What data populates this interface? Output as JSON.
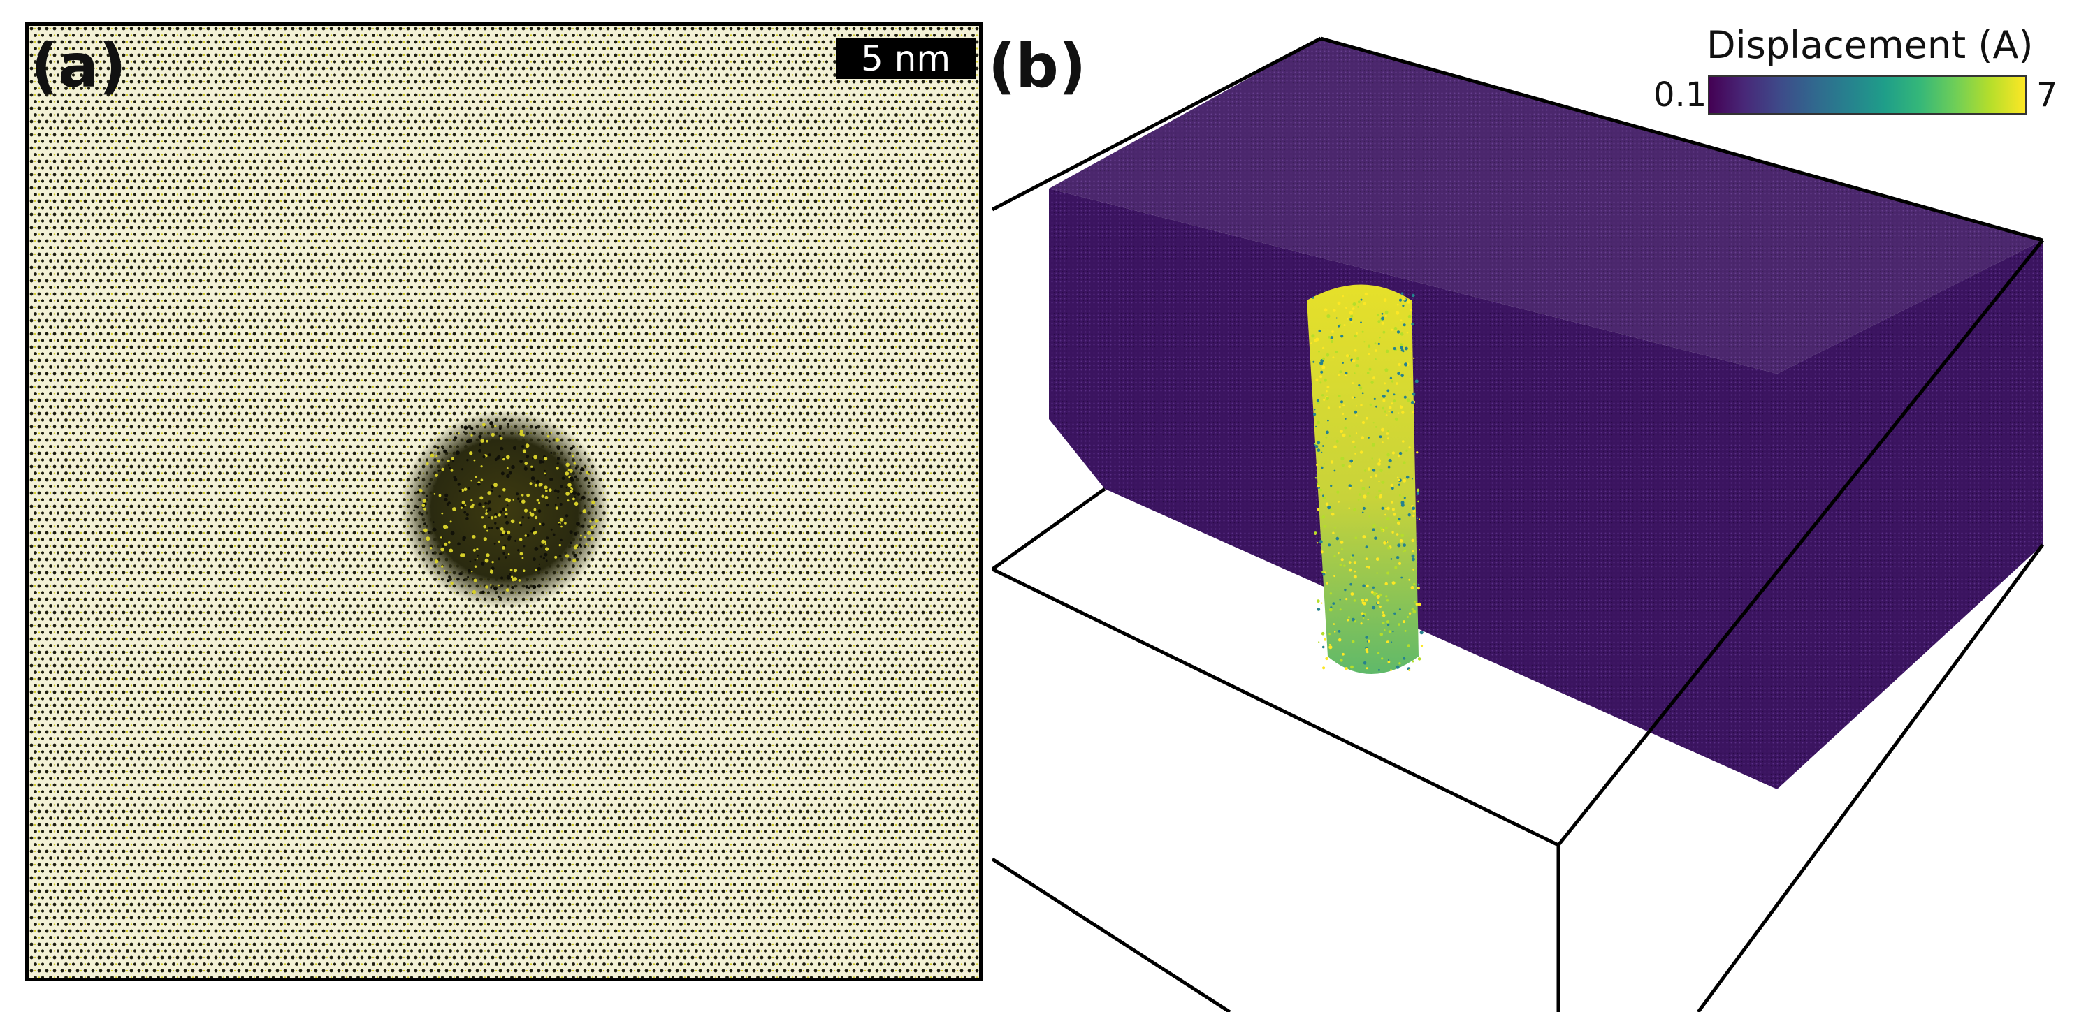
{
  "panel_a": {
    "label": "(a)",
    "scale_bar_text": "5 nm",
    "colors": {
      "background": "#f3f1d6",
      "atom": "#1d1d10",
      "atom_highlight": "#d6cf2a"
    }
  },
  "panel_b": {
    "label": "(b)",
    "colorbar": {
      "title": "Displacement (A)",
      "min_label": "0.1",
      "max_label": "7",
      "colors": [
        "#440154",
        "#482878",
        "#3e4a89",
        "#31688e",
        "#26828e",
        "#1f9e89",
        "#35b779",
        "#6ece58",
        "#b5de2b",
        "#fde725"
      ]
    },
    "colors": {
      "slab": "#3b1460",
      "column_low": "#1f9e89",
      "column_high": "#e6e02a",
      "outline": "#000000"
    }
  }
}
